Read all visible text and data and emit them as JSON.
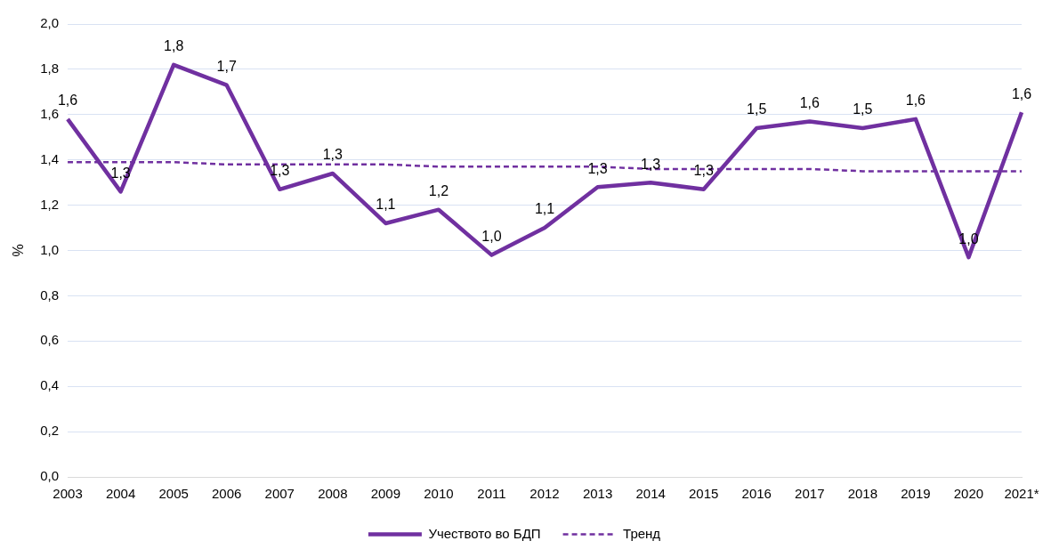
{
  "chart_data": {
    "type": "line",
    "ylabel": "%",
    "categories": [
      "2003",
      "2004",
      "2005",
      "2006",
      "2007",
      "2008",
      "2009",
      "2010",
      "2011",
      "2012",
      "2013",
      "2014",
      "2015",
      "2016",
      "2017",
      "2018",
      "2019",
      "2020",
      "2021*"
    ],
    "ylim": [
      0,
      2
    ],
    "yticks": [
      {
        "value": 0,
        "label": "0,0"
      },
      {
        "value": 0.2,
        "label": "0,2"
      },
      {
        "value": 0.4,
        "label": "0,4"
      },
      {
        "value": 0.6,
        "label": "0,6"
      },
      {
        "value": 0.8,
        "label": "0,8"
      },
      {
        "value": 1,
        "label": "1,0"
      },
      {
        "value": 1.2,
        "label": "1,2"
      },
      {
        "value": 1.4,
        "label": "1,4"
      },
      {
        "value": 1.6,
        "label": "1,6"
      },
      {
        "value": 1.8,
        "label": "1,8"
      },
      {
        "value": 2,
        "label": "2,0"
      }
    ],
    "grid": "y",
    "legend": "bottom",
    "marker": "none",
    "series": [
      {
        "name": "Учеството во БДП",
        "color": "#7030a0",
        "line_style": "solid",
        "values": [
          1.58,
          1.26,
          1.82,
          1.73,
          1.27,
          1.34,
          1.12,
          1.18,
          0.98,
          1.1,
          1.28,
          1.3,
          1.27,
          1.54,
          1.57,
          1.54,
          1.58,
          0.97,
          1.61
        ],
        "value_labels": [
          "1,6",
          "1,3",
          "1,8",
          "1,7",
          "1,3",
          "1,3",
          "1,1",
          "1,2",
          "1,0",
          "1,1",
          "1,3",
          "1,3",
          "1,3",
          "1,5",
          "1,6",
          "1,5",
          "1,6",
          "1,0",
          "1,6"
        ]
      },
      {
        "name": "Тренд",
        "color": "#7030a0",
        "line_style": "dashed",
        "values": [
          1.39,
          1.39,
          1.39,
          1.38,
          1.38,
          1.38,
          1.38,
          1.37,
          1.37,
          1.37,
          1.37,
          1.36,
          1.36,
          1.36,
          1.36,
          1.35,
          1.35,
          1.35,
          1.35
        ]
      }
    ]
  }
}
